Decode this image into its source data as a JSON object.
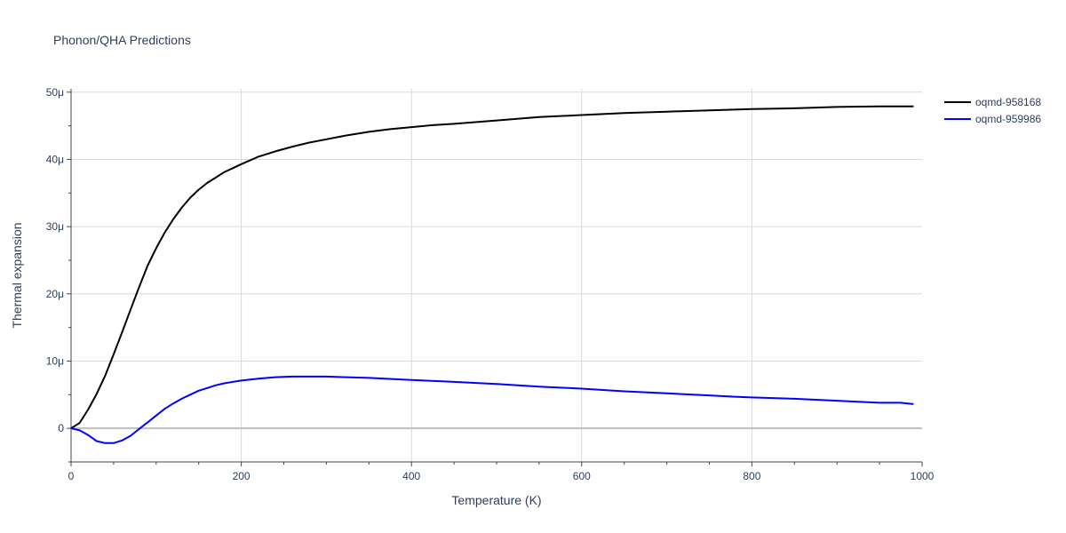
{
  "chart_data": {
    "type": "line",
    "title": "Phonon/QHA Predictions",
    "xlabel": "Temperature (K)",
    "ylabel": "Thermal expansion",
    "xlim": [
      0,
      1000
    ],
    "ylim": [
      -5,
      50.5
    ],
    "grid": true,
    "legend_position": "top-right",
    "x_ticks": [
      0,
      200,
      400,
      600,
      800,
      1000
    ],
    "x_tick_labels": [
      "0",
      "200",
      "400",
      "600",
      "800",
      "1000"
    ],
    "y_ticks": [
      0,
      10,
      20,
      30,
      40,
      50
    ],
    "y_tick_labels": [
      "0",
      "10μ",
      "20μ",
      "30μ",
      "40μ",
      "50μ"
    ],
    "series": [
      {
        "name": "oqmd-958168",
        "color": "#000000",
        "x": [
          0,
          10,
          20,
          30,
          40,
          50,
          60,
          70,
          80,
          90,
          100,
          110,
          120,
          130,
          140,
          150,
          160,
          170,
          180,
          190,
          200,
          220,
          240,
          260,
          280,
          300,
          325,
          350,
          375,
          400,
          425,
          450,
          500,
          550,
          600,
          650,
          700,
          750,
          800,
          850,
          900,
          950,
          990
        ],
        "y": [
          0,
          0.8,
          2.8,
          5.1,
          7.8,
          11,
          14.3,
          17.7,
          21,
          24.2,
          26.8,
          29.1,
          31.1,
          32.8,
          34.3,
          35.5,
          36.5,
          37.3,
          38.1,
          38.7,
          39.3,
          40.4,
          41.2,
          41.9,
          42.5,
          43.0,
          43.6,
          44.1,
          44.5,
          44.8,
          45.1,
          45.3,
          45.8,
          46.3,
          46.6,
          46.9,
          47.1,
          47.3,
          47.5,
          47.6,
          47.8,
          47.9,
          47.9
        ],
        "y_scale": "μ"
      },
      {
        "name": "oqmd-959986",
        "color": "#0000ff",
        "x": [
          0,
          10,
          20,
          30,
          40,
          50,
          60,
          70,
          80,
          90,
          100,
          110,
          120,
          130,
          140,
          150,
          160,
          170,
          180,
          190,
          200,
          220,
          240,
          260,
          280,
          300,
          350,
          400,
          450,
          500,
          550,
          600,
          650,
          700,
          750,
          780,
          800,
          850,
          900,
          950,
          975,
          990
        ],
        "y": [
          0,
          -0.3,
          -1.0,
          -1.9,
          -2.2,
          -2.2,
          -1.8,
          -1.1,
          -0.1,
          0.9,
          1.9,
          2.9,
          3.7,
          4.4,
          5.0,
          5.6,
          6.0,
          6.4,
          6.7,
          6.9,
          7.1,
          7.4,
          7.6,
          7.7,
          7.7,
          7.7,
          7.5,
          7.2,
          6.9,
          6.6,
          6.2,
          5.9,
          5.5,
          5.2,
          4.9,
          4.7,
          4.6,
          4.4,
          4.1,
          3.8,
          3.8,
          3.6
        ],
        "y_scale": "μ"
      }
    ]
  }
}
